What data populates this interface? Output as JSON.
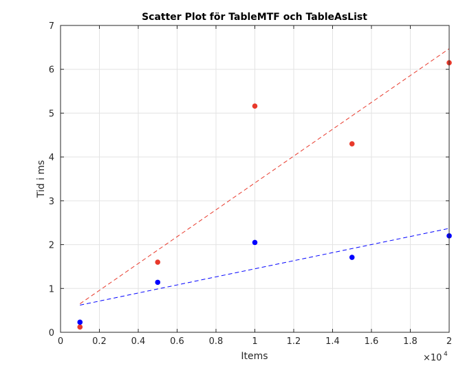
{
  "chart_data": {
    "type": "scatter",
    "title": "Scatter Plot för TableMTF och TableAsList",
    "xlabel": "Items",
    "ylabel": "Tid i ms",
    "x_exponent_base": "×10",
    "x_exponent_power": "4",
    "xlim": [
      0,
      20000
    ],
    "ylim": [
      0,
      7
    ],
    "x_ticks": [
      0,
      2000,
      4000,
      6000,
      8000,
      10000,
      12000,
      14000,
      16000,
      18000,
      20000
    ],
    "x_tick_labels": [
      "0",
      "0.2",
      "0.4",
      "0.6",
      "0.8",
      "1",
      "1.2",
      "1.4",
      "1.6",
      "1.8",
      "2"
    ],
    "y_ticks": [
      0,
      1,
      2,
      3,
      4,
      5,
      6,
      7
    ],
    "y_tick_labels": [
      "0",
      "1",
      "2",
      "3",
      "4",
      "5",
      "6",
      "7"
    ],
    "grid": true,
    "series": [
      {
        "color": "#e8392b",
        "points": [
          {
            "x": 1000,
            "y": 0.12
          },
          {
            "x": 5000,
            "y": 1.6
          },
          {
            "x": 10000,
            "y": 5.16
          },
          {
            "x": 15000,
            "y": 4.3
          },
          {
            "x": 20000,
            "y": 6.15
          }
        ],
        "trend": {
          "x": [
            1000,
            20000
          ],
          "y": [
            0.65,
            6.47
          ]
        }
      },
      {
        "color": "#0000ff",
        "points": [
          {
            "x": 1000,
            "y": 0.23
          },
          {
            "x": 5000,
            "y": 1.14
          },
          {
            "x": 10000,
            "y": 2.05
          },
          {
            "x": 15000,
            "y": 1.71
          },
          {
            "x": 20000,
            "y": 2.2
          }
        ],
        "trend": {
          "x": [
            1000,
            20000
          ],
          "y": [
            0.62,
            2.37
          ]
        }
      }
    ]
  }
}
